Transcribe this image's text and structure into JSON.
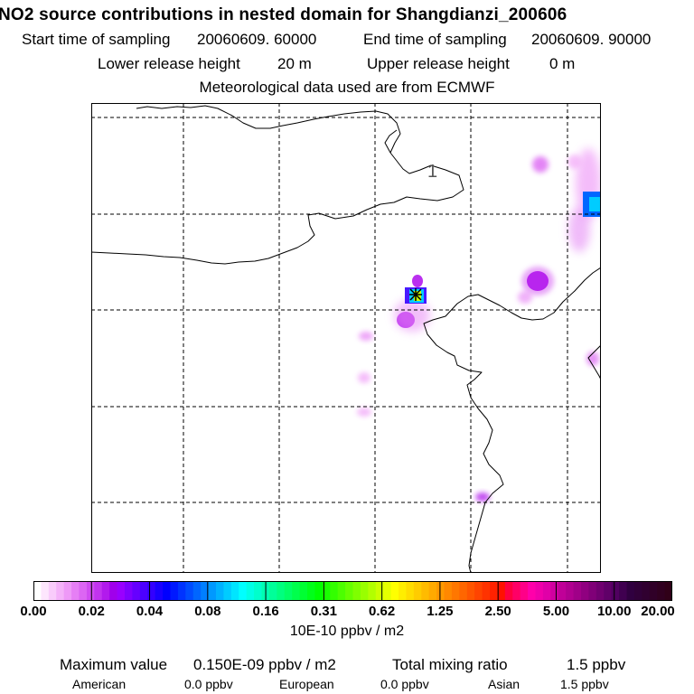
{
  "header": {
    "title": "NO2 source contributions in nested domain for Shangdianzi_200606",
    "start_label": "Start time of sampling",
    "start_value": "20060609. 60000",
    "end_label": "End time of sampling",
    "end_value": "20060609. 90000",
    "lower_label": "Lower release height",
    "lower_value": "20 m",
    "upper_label": "Upper release height",
    "upper_value": "0 m",
    "meteo_text": "Meteorological data used are from ECMWF"
  },
  "map": {
    "contour_label": "1",
    "station_marker": "station-cross"
  },
  "colorbar": {
    "ticks": [
      "0.00",
      "0.02",
      "0.04",
      "0.08",
      "0.16",
      "0.31",
      "0.62",
      "1.25",
      "2.50",
      "5.00",
      "10.00",
      "20.00"
    ],
    "colors": [
      "#ffffff",
      "#fde6fd",
      "#f9ccfb",
      "#f4b2f9",
      "#ee99f7",
      "#e67ff5",
      "#dc66f3",
      "#d04cf1",
      "#c233ef",
      "#b21aed",
      "#a000eb",
      "#9900ff",
      "#7f00ff",
      "#6600ff",
      "#4c00ff",
      "#3300ff",
      "#1900ff",
      "#0000ff",
      "#0019ff",
      "#0033ff",
      "#004cff",
      "#0066ff",
      "#007fff",
      "#0099ff",
      "#00b2ff",
      "#00ccff",
      "#00e5ff",
      "#00ffff",
      "#00ffe5",
      "#00ffcc",
      "#00ffb2",
      "#00ff99",
      "#00ff7f",
      "#00ff66",
      "#00ff4c",
      "#00ff33",
      "#00ff19",
      "#00ff00",
      "#19ff00",
      "#33ff00",
      "#4cff00",
      "#66ff00",
      "#7fff00",
      "#99ff00",
      "#b2ff00",
      "#ccff00",
      "#e5ff00",
      "#ffff00",
      "#ffee00",
      "#ffdd00",
      "#ffcc00",
      "#ffbb00",
      "#ffaa00",
      "#ff9900",
      "#ff8800",
      "#ff7700",
      "#ff6600",
      "#ff5500",
      "#ff4400",
      "#ff3300",
      "#ff2200",
      "#ff1100",
      "#ff0040",
      "#ff0066",
      "#ff0088",
      "#ff00aa",
      "#f000aa",
      "#e000a8",
      "#d000a0",
      "#c00098",
      "#b00090",
      "#a00088",
      "#900080",
      "#800078",
      "#700070",
      "#600068",
      "#500060",
      "#400050",
      "#300040",
      "#300038",
      "#300030",
      "#300028",
      "#300020",
      "#300018"
    ],
    "units": "10E-10 ppbv / m2"
  },
  "stats": {
    "max_label": "Maximum value",
    "max_value": "0.150E-09 ppbv / m2",
    "total_label": "Total mixing ratio",
    "total_value": "1.5 ppbv",
    "american_label": "American",
    "american_value": "0.0 ppbv",
    "european_label": "European",
    "european_value": "0.0 ppbv",
    "asian_label": "Asian",
    "asian_value": "1.5 ppbv"
  }
}
